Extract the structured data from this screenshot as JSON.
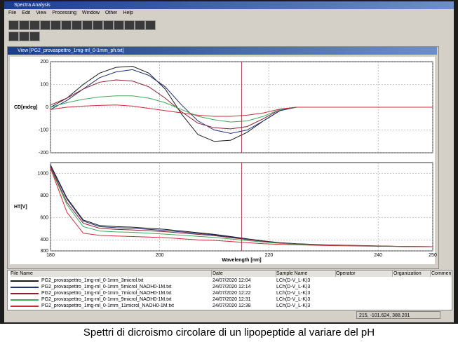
{
  "window": {
    "title": "Spectra Analysis",
    "menu": [
      "File",
      "Edit",
      "View",
      "Processing",
      "Window",
      "Other",
      "Help"
    ]
  },
  "view_title": "View [PG2_provaspettro_1mg-ml_0-1mm_ph.txt]",
  "chart_data": [
    {
      "type": "line",
      "ylabel": "CD[mdeg]",
      "xlim": [
        180,
        250
      ],
      "xticks": [
        180,
        200,
        220,
        240,
        250
      ],
      "xtick_labels": false,
      "ylim": [
        -200,
        200
      ],
      "yticks": [
        -200,
        -100,
        0,
        100,
        200
      ],
      "grid": true,
      "cursor_x": 215,
      "x": [
        180,
        183,
        186,
        189,
        192,
        195,
        198,
        201,
        204,
        207,
        210,
        213,
        216,
        219,
        222,
        225,
        230,
        235,
        240,
        245,
        250
      ],
      "series": [
        {
          "color": "#1a1a1a",
          "values": [
            0,
            40,
            100,
            150,
            175,
            180,
            150,
            80,
            -30,
            -120,
            -150,
            -145,
            -110,
            -60,
            -15,
            0,
            0,
            0,
            0,
            0,
            0
          ]
        },
        {
          "color": "#1f2f7a",
          "values": [
            -10,
            30,
            80,
            130,
            155,
            165,
            140,
            90,
            10,
            -60,
            -100,
            -115,
            -100,
            -60,
            -15,
            0,
            0,
            0,
            0,
            0,
            0
          ]
        },
        {
          "color": "#8a2030",
          "values": [
            10,
            40,
            80,
            110,
            120,
            115,
            90,
            40,
            -20,
            -70,
            -90,
            -95,
            -85,
            -50,
            -10,
            0,
            0,
            0,
            0,
            0,
            0
          ]
        },
        {
          "color": "#3caa5a",
          "values": [
            0,
            20,
            35,
            45,
            50,
            50,
            40,
            20,
            -10,
            -40,
            -55,
            -65,
            -60,
            -40,
            -10,
            0,
            0,
            0,
            0,
            0,
            0
          ]
        },
        {
          "color": "#d02a3a",
          "values": [
            -10,
            0,
            5,
            8,
            10,
            5,
            -5,
            -15,
            -25,
            -35,
            -40,
            -40,
            -35,
            -25,
            -8,
            0,
            0,
            0,
            0,
            0,
            0
          ]
        }
      ]
    },
    {
      "type": "line",
      "ylabel": "HT[V]",
      "xlabel": "Wavelength [nm]",
      "xlim": [
        180,
        250
      ],
      "xticks": [
        180,
        200,
        220,
        240,
        250
      ],
      "xtick_labels": true,
      "ylim": [
        300,
        1100
      ],
      "yticks": [
        300,
        400,
        600,
        800,
        1000
      ],
      "grid": true,
      "cursor_x": 215,
      "x": [
        180,
        183,
        186,
        189,
        192,
        195,
        198,
        201,
        204,
        207,
        210,
        213,
        216,
        219,
        222,
        225,
        230,
        235,
        240,
        245,
        250
      ],
      "series": [
        {
          "color": "#1a1a1a",
          "values": [
            1080,
            780,
            580,
            530,
            520,
            515,
            505,
            495,
            480,
            465,
            450,
            430,
            410,
            390,
            375,
            365,
            355,
            350,
            345,
            340,
            338
          ]
        },
        {
          "color": "#1f2f7a",
          "values": [
            1070,
            770,
            570,
            520,
            510,
            505,
            495,
            485,
            472,
            458,
            444,
            425,
            406,
            388,
            373,
            364,
            354,
            349,
            344,
            340,
            338
          ]
        },
        {
          "color": "#8a2030",
          "values": [
            1060,
            740,
            550,
            505,
            495,
            490,
            482,
            474,
            462,
            450,
            438,
            420,
            403,
            386,
            372,
            363,
            353,
            348,
            344,
            340,
            338
          ]
        },
        {
          "color": "#3caa5a",
          "values": [
            1050,
            720,
            520,
            480,
            472,
            468,
            460,
            452,
            442,
            432,
            422,
            408,
            394,
            380,
            368,
            360,
            352,
            347,
            343,
            340,
            338
          ]
        },
        {
          "color": "#d02a3a",
          "values": [
            1050,
            650,
            460,
            440,
            435,
            430,
            425,
            420,
            410,
            400,
            395,
            385,
            375,
            365,
            360,
            355,
            348,
            345,
            342,
            340,
            338
          ]
        }
      ]
    }
  ],
  "table": {
    "headers": [
      "File Name",
      "Date",
      "Sample Name",
      "Operator",
      "Organization",
      "Commen"
    ],
    "rows": [
      {
        "color": "#1a1a1a",
        "file": "PG2_provaspettro_1mg-ml_0-1mm_3microl.txt",
        "date": "24/07/2020 12:04",
        "sample": "LCh(D-V_L-K)3"
      },
      {
        "color": "#1f2f7a",
        "file": "PG2_provaspettro_1mg-ml_0-1mm_5microl_NAOH0-1M.txt",
        "date": "24/07/2020 12:14",
        "sample": "LCh(D-V_L-K)3"
      },
      {
        "color": "#8a2030",
        "file": "PG2_provaspettro_1mg-ml_0-1mm_7microl_NAOH0-1M.txt",
        "date": "24/07/2020 12:22",
        "sample": "LCh(D-V_L-K)3"
      },
      {
        "color": "#3caa5a",
        "file": "PG2_provaspettro_1mg-ml_0-1mm_9microl_NAOH0-1M.txt",
        "date": "24/07/2020 12:31",
        "sample": "LCh(D-V_L-K)3"
      },
      {
        "color": "#d02a3a",
        "file": "PG2_provaspettro_1mg-ml_0-1mm_11microl_NAOH0-1M.txt",
        "date": "24/07/2020 12:38",
        "sample": "LCh(D-V_L-K)3"
      }
    ]
  },
  "status": "215, -101.624, 388.201",
  "caption": "Spettri di dicroismo circolare di un lipopeptide al variare del pH"
}
